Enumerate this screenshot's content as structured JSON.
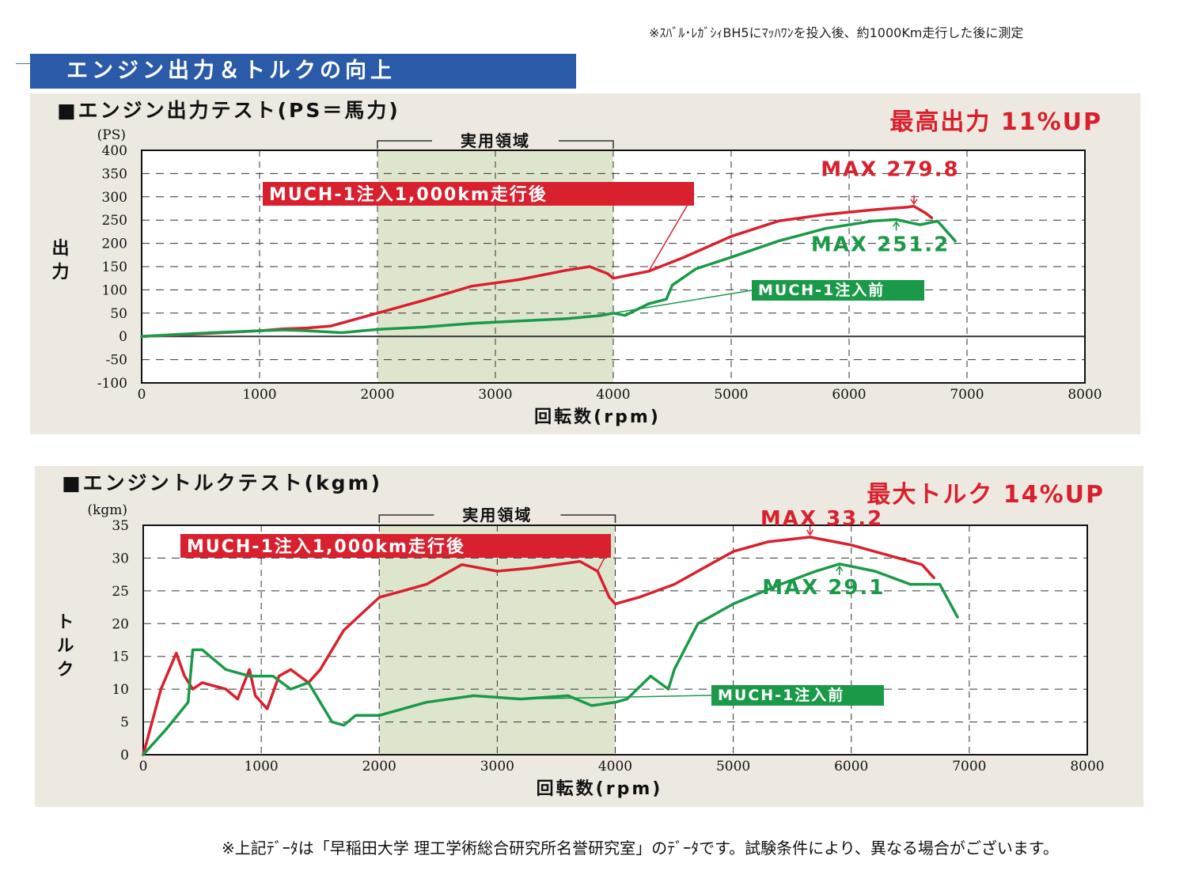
{
  "header_note": "※ｽﾊﾞﾙ･ﾚｶﾞｼｨBH5にﾏｯﾊﾜﾝを投入後、約1000Km走行した後に測定",
  "banner_title": "エンジン出力＆トルクの向上",
  "footnote": "※上記ﾃﾞｰﾀは「早稲田大学 理工学術総合研究所名誉研究室」のﾃﾞｰﾀです。試験条件により、異なる場合がございます。",
  "colors": {
    "after": "#d8202e",
    "before": "#1a9a48",
    "zone": "#dde6cd",
    "banner": "#2a5aa8",
    "panel": "#ede9e0"
  },
  "chart_data": [
    {
      "type": "line",
      "title": "■エンジン出力テスト(PS＝馬力)",
      "headline": "最高出力 11%UP",
      "unit": "(PS)",
      "ylabel": "出力",
      "xlabel": "回転数(rpm)",
      "zone_label": "実用領域",
      "zone": [
        2000,
        4000
      ],
      "xlim": [
        0,
        8000
      ],
      "ylim": [
        -100,
        400
      ],
      "xticks": [
        0,
        1000,
        2000,
        3000,
        4000,
        5000,
        6000,
        7000,
        8000
      ],
      "yticks": [
        -100,
        -50,
        0,
        50,
        100,
        150,
        200,
        250,
        300,
        350,
        400
      ],
      "series": [
        {
          "name": "MUCH-1注入1,000km走行後",
          "max_label": "MAX 279.8",
          "max_point": [
            6550,
            279.8
          ],
          "x": [
            0,
            300,
            600,
            1000,
            1200,
            1400,
            1600,
            2000,
            2400,
            2800,
            3200,
            3600,
            3800,
            3850,
            3950,
            4000,
            4300,
            4600,
            5000,
            5400,
            5800,
            6200,
            6500,
            6550,
            6650,
            6700
          ],
          "y": [
            0,
            3,
            7,
            12,
            16,
            18,
            22,
            50,
            78,
            108,
            122,
            142,
            150,
            145,
            135,
            125,
            140,
            170,
            215,
            248,
            262,
            272,
            278,
            279.8,
            265,
            255
          ]
        },
        {
          "name": "MUCH-1注入前",
          "max_label": "MAX 251.2",
          "max_point": [
            6400,
            251.2
          ],
          "x": [
            0,
            300,
            600,
            1000,
            1200,
            1400,
            1700,
            2000,
            2400,
            2800,
            3200,
            3600,
            3900,
            4000,
            4100,
            4300,
            4450,
            4500,
            4700,
            5000,
            5400,
            5800,
            6200,
            6400,
            6600,
            6750,
            6900
          ],
          "y": [
            0,
            4,
            8,
            12,
            14,
            12,
            8,
            15,
            20,
            28,
            33,
            38,
            45,
            50,
            45,
            70,
            80,
            110,
            145,
            170,
            205,
            232,
            248,
            251.2,
            240,
            248,
            205
          ]
        }
      ]
    },
    {
      "type": "line",
      "title": "■エンジントルクテスト(kgm)",
      "headline": "最大トルク 14%UP",
      "unit": "(kgm)",
      "ylabel": "トルク",
      "xlabel": "回転数(rpm)",
      "zone_label": "実用領域",
      "zone": [
        2000,
        4000
      ],
      "xlim": [
        0,
        8000
      ],
      "ylim": [
        0,
        35
      ],
      "xticks": [
        0,
        1000,
        2000,
        3000,
        4000,
        5000,
        6000,
        7000,
        8000
      ],
      "yticks": [
        0,
        5,
        10,
        15,
        20,
        25,
        30,
        35
      ],
      "series": [
        {
          "name": "MUCH-1注入1,000km走行後",
          "max_label": "MAX 33.2",
          "max_point": [
            5650,
            33.2
          ],
          "x": [
            0,
            150,
            280,
            350,
            420,
            500,
            700,
            800,
            900,
            950,
            1050,
            1150,
            1250,
            1400,
            1500,
            1700,
            2000,
            2200,
            2400,
            2700,
            3000,
            3300,
            3700,
            3850,
            3950,
            4000,
            4200,
            4500,
            4800,
            5000,
            5300,
            5650,
            6000,
            6400,
            6600,
            6700
          ],
          "y": [
            0,
            10,
            15.5,
            12,
            10,
            11,
            10,
            8.5,
            13,
            9,
            7,
            12,
            13,
            11,
            13,
            19,
            24,
            25,
            26,
            29,
            28,
            28.5,
            29.5,
            28,
            24,
            23,
            24,
            26,
            29,
            31,
            32.5,
            33.2,
            32,
            30,
            29,
            27
          ]
        },
        {
          "name": "MUCH-1注入前",
          "max_label": "MAX 29.1",
          "max_point": [
            5900,
            29.1
          ],
          "x": [
            0,
            200,
            380,
            420,
            500,
            700,
            900,
            1100,
            1250,
            1400,
            1600,
            1700,
            1800,
            2000,
            2400,
            2800,
            3200,
            3600,
            3800,
            4000,
            4100,
            4300,
            4450,
            4500,
            4700,
            5000,
            5400,
            5700,
            5900,
            6200,
            6500,
            6750,
            6900
          ],
          "y": [
            0,
            4,
            8,
            16,
            16,
            13,
            12,
            12,
            10,
            11,
            5,
            4.5,
            6,
            6,
            8,
            9,
            8.5,
            9,
            7.5,
            8,
            8.5,
            12,
            10,
            13,
            20,
            23,
            26,
            28,
            29.1,
            28,
            26,
            26,
            21
          ]
        }
      ]
    }
  ]
}
